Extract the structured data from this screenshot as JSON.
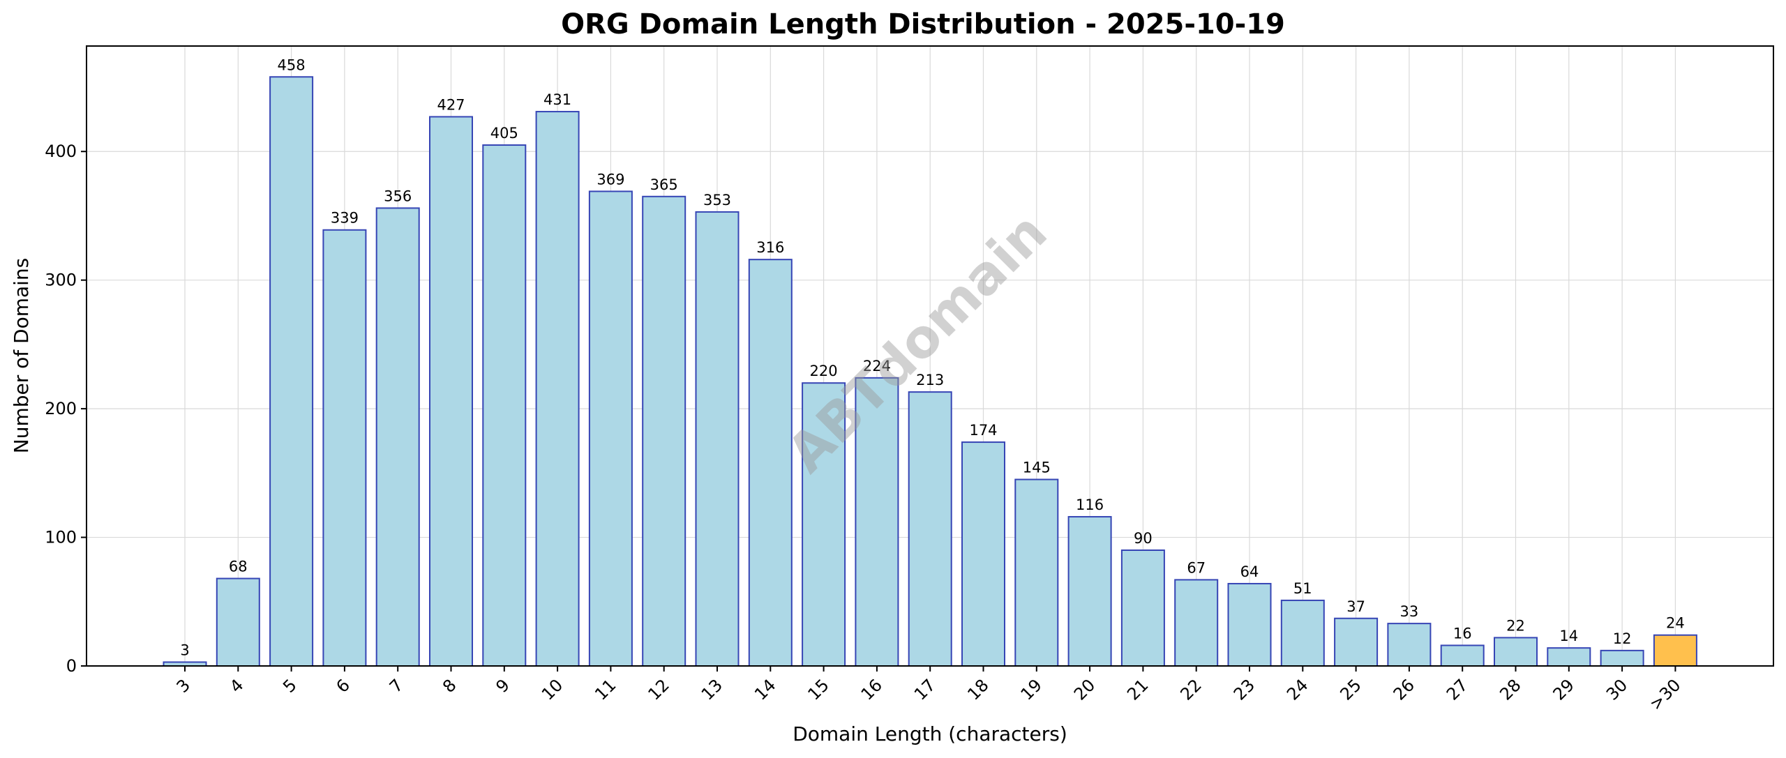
{
  "chart_data": {
    "type": "bar",
    "title": "ORG Domain Length Distribution - 2025-10-19",
    "xlabel": "Domain Length (characters)",
    "ylabel": "Number of Domains",
    "categories": [
      "3",
      "4",
      "5",
      "6",
      "7",
      "8",
      "9",
      "10",
      "11",
      "12",
      "13",
      "14",
      "15",
      "16",
      "17",
      "18",
      "19",
      "20",
      "21",
      "22",
      "23",
      "24",
      "25",
      "26",
      "27",
      "28",
      "29",
      "30",
      ">30"
    ],
    "values": [
      3,
      68,
      458,
      339,
      356,
      427,
      405,
      431,
      369,
      365,
      353,
      316,
      220,
      224,
      213,
      174,
      145,
      116,
      90,
      67,
      64,
      51,
      37,
      33,
      16,
      22,
      14,
      12,
      24
    ],
    "ylim": [
      0,
      482
    ],
    "yticks": [
      0,
      100,
      200,
      300,
      400
    ],
    "grid": true,
    "bar_color": "#add8e6",
    "bar_edge_color": "#3645b5",
    "highlight_category": ">30",
    "highlight_color": "#ffc04d",
    "watermark": "ABTdomain"
  }
}
